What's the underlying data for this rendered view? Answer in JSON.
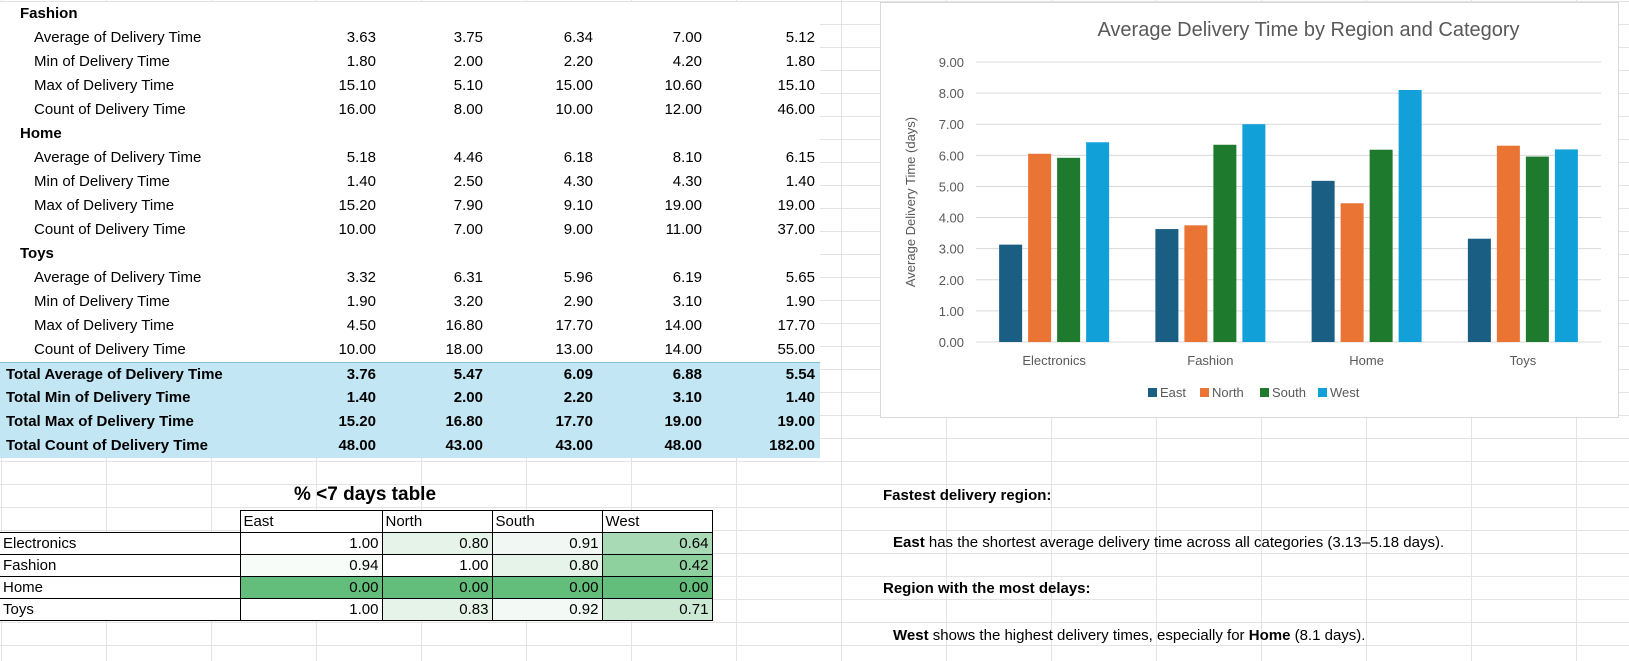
{
  "pivot": {
    "sections": [
      {
        "category": "Fashion",
        "rows": [
          {
            "label": "Average of Delivery Time",
            "values": [
              "3.63",
              "3.75",
              "6.34",
              "7.00",
              "5.12"
            ]
          },
          {
            "label": "Min of Delivery Time",
            "values": [
              "1.80",
              "2.00",
              "2.20",
              "4.20",
              "1.80"
            ]
          },
          {
            "label": "Max of Delivery Time",
            "values": [
              "15.10",
              "5.10",
              "15.00",
              "10.60",
              "15.10"
            ]
          },
          {
            "label": "Count of Delivery Time",
            "values": [
              "16.00",
              "8.00",
              "10.00",
              "12.00",
              "46.00"
            ]
          }
        ]
      },
      {
        "category": "Home",
        "rows": [
          {
            "label": "Average of Delivery Time",
            "values": [
              "5.18",
              "4.46",
              "6.18",
              "8.10",
              "6.15"
            ]
          },
          {
            "label": "Min of Delivery Time",
            "values": [
              "1.40",
              "2.50",
              "4.30",
              "4.30",
              "1.40"
            ]
          },
          {
            "label": "Max of Delivery Time",
            "values": [
              "15.20",
              "7.90",
              "9.10",
              "19.00",
              "19.00"
            ]
          },
          {
            "label": "Count of Delivery Time",
            "values": [
              "10.00",
              "7.00",
              "9.00",
              "11.00",
              "37.00"
            ]
          }
        ]
      },
      {
        "category": "Toys",
        "rows": [
          {
            "label": "Average of Delivery Time",
            "values": [
              "3.32",
              "6.31",
              "5.96",
              "6.19",
              "5.65"
            ]
          },
          {
            "label": "Min of Delivery Time",
            "values": [
              "1.90",
              "3.20",
              "2.90",
              "3.10",
              "1.90"
            ]
          },
          {
            "label": "Max of Delivery Time",
            "values": [
              "4.50",
              "16.80",
              "17.70",
              "14.00",
              "17.70"
            ]
          },
          {
            "label": "Count of Delivery Time",
            "values": [
              "10.00",
              "18.00",
              "13.00",
              "14.00",
              "55.00"
            ]
          }
        ]
      }
    ],
    "totals": [
      {
        "label": "Total Average of Delivery Time",
        "values": [
          "3.76",
          "5.47",
          "6.09",
          "6.88",
          "5.54"
        ]
      },
      {
        "label": "Total Min of Delivery Time",
        "values": [
          "1.40",
          "2.00",
          "2.20",
          "3.10",
          "1.40"
        ]
      },
      {
        "label": "Total Max of Delivery Time",
        "values": [
          "15.20",
          "16.80",
          "17.70",
          "19.00",
          "19.00"
        ]
      },
      {
        "label": "Total Count of Delivery Time",
        "values": [
          "48.00",
          "43.00",
          "43.00",
          "48.00",
          "182.00"
        ]
      }
    ]
  },
  "chart_data": {
    "type": "bar",
    "title": "Average Delivery Time by Region and Category",
    "xlabel": "",
    "ylabel": "Average Delivery Time (days)",
    "ylim": [
      0,
      9
    ],
    "yticks": [
      "0.00",
      "1.00",
      "2.00",
      "3.00",
      "4.00",
      "5.00",
      "6.00",
      "7.00",
      "8.00",
      "9.00"
    ],
    "grid": true,
    "legend_position": "bottom",
    "categories": [
      "Electronics",
      "Fashion",
      "Home",
      "Toys"
    ],
    "series": [
      {
        "name": "East",
        "color": "#1a5e84",
        "values": [
          3.13,
          3.63,
          5.18,
          3.32
        ]
      },
      {
        "name": "North",
        "color": "#ea7434",
        "values": [
          6.05,
          3.75,
          4.46,
          6.31
        ]
      },
      {
        "name": "South",
        "color": "#1e7a2d",
        "values": [
          5.92,
          6.34,
          6.18,
          5.96
        ]
      },
      {
        "name": "West",
        "color": "#12a0d8",
        "values": [
          6.42,
          7.0,
          8.1,
          6.19
        ]
      }
    ]
  },
  "pct_table": {
    "title": "% <7 days table",
    "columns": [
      "East",
      "North",
      "South",
      "West"
    ],
    "rows": [
      {
        "label": "Electronics",
        "values": [
          "1.00",
          "0.80",
          "0.91",
          "0.64"
        ],
        "shades": [
          "#ffffff",
          "#e6f3e9",
          "#f1f8f3",
          "#a8dab5"
        ]
      },
      {
        "label": "Fashion",
        "values": [
          "0.94",
          "1.00",
          "0.80",
          "0.42"
        ],
        "shades": [
          "#f8fcf9",
          "#ffffff",
          "#e6f3e9",
          "#8fd09f"
        ]
      },
      {
        "label": "Home",
        "values": [
          "0.00",
          "0.00",
          "0.00",
          "0.00"
        ],
        "shades": [
          "#63be7b",
          "#63be7b",
          "#63be7b",
          "#63be7b"
        ]
      },
      {
        "label": "Toys",
        "values": [
          "1.00",
          "0.83",
          "0.92",
          "0.71"
        ],
        "shades": [
          "#ffffff",
          "#e6f3e9",
          "#f3f9f5",
          "#cbe9d3"
        ]
      }
    ]
  },
  "notes": {
    "fastest_heading": "Fastest delivery region:",
    "fastest_bold": "East",
    "fastest_text": " has the shortest average delivery time across all categories (3.13–5.18 days).",
    "delays_heading": "Region with the most delays:",
    "delays_bold1": "West",
    "delays_text1": " shows the highest delivery times, especially for ",
    "delays_bold2": "Home",
    "delays_text2": " (8.1 days)."
  }
}
